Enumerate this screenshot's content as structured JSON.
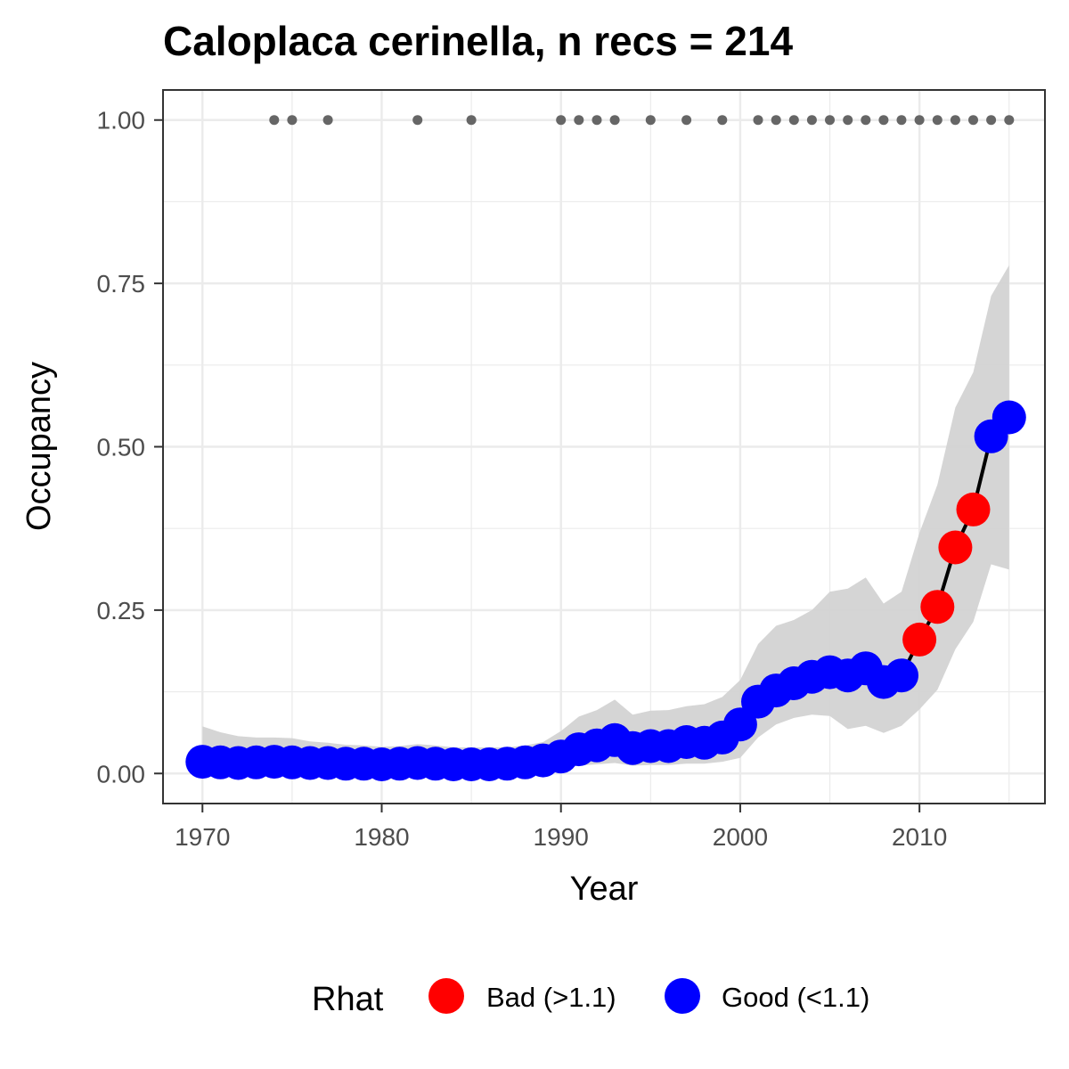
{
  "chart_data": {
    "type": "line",
    "title": "Caloplaca cerinella, n recs = 214",
    "xlabel": "Year",
    "ylabel": "Occupancy",
    "xlim": [
      1967.8,
      1917.0
    ],
    "ylim": [
      -0.046,
      1.046
    ],
    "x_ticks": [
      1970,
      1980,
      1990,
      2000,
      2010
    ],
    "x_tick_labels": [
      "1970",
      "1980",
      "1990",
      "2000",
      "2010"
    ],
    "y_ticks": [
      0,
      0.25,
      0.5,
      0.75,
      1.0
    ],
    "y_tick_labels": [
      "0.00",
      "0.25",
      "0.50",
      "0.75",
      "1.00"
    ],
    "grid": true,
    "legend_position": "bottom",
    "legend": {
      "title": "Rhat",
      "entries": [
        {
          "label": "Bad (>1.1)",
          "color": "#ff0000"
        },
        {
          "label": "Good (<1.1)",
          "color": "#0000ff"
        }
      ]
    },
    "colors": {
      "bad": "#ff0000",
      "good": "#0000ff",
      "ribbon": "#d3d3d3",
      "line": "#000000",
      "record_points": "#666666"
    },
    "series": [
      {
        "x": [
          1970,
          1971,
          1972,
          1973,
          1974,
          1975,
          1976,
          1977,
          1978,
          1979,
          1980,
          1981,
          1982,
          1983,
          1984,
          1985,
          1986,
          1987,
          1988,
          1989,
          1990,
          1991,
          1992,
          1993,
          1994,
          1995,
          1996,
          1997,
          1998,
          1999,
          2000,
          2001,
          2002,
          2003,
          2004,
          2005,
          2006,
          2007,
          2008,
          2009,
          2010,
          2011,
          2012,
          2013,
          2014,
          2015
        ],
        "y": [
          0.018,
          0.017,
          0.016,
          0.017,
          0.018,
          0.017,
          0.016,
          0.016,
          0.015,
          0.015,
          0.014,
          0.015,
          0.016,
          0.015,
          0.014,
          0.014,
          0.014,
          0.015,
          0.017,
          0.02,
          0.026,
          0.037,
          0.043,
          0.051,
          0.039,
          0.042,
          0.042,
          0.048,
          0.047,
          0.055,
          0.075,
          0.11,
          0.127,
          0.138,
          0.148,
          0.155,
          0.15,
          0.161,
          0.14,
          0.15,
          0.205,
          0.255,
          0.346,
          0.404,
          0.516,
          0.545
        ],
        "rhat": [
          "Good",
          "Good",
          "Good",
          "Good",
          "Good",
          "Good",
          "Good",
          "Good",
          "Good",
          "Good",
          "Good",
          "Good",
          "Good",
          "Good",
          "Good",
          "Good",
          "Good",
          "Good",
          "Good",
          "Good",
          "Good",
          "Good",
          "Good",
          "Good",
          "Good",
          "Good",
          "Good",
          "Good",
          "Good",
          "Good",
          "Good",
          "Good",
          "Good",
          "Good",
          "Good",
          "Good",
          "Good",
          "Good",
          "Good",
          "Good",
          "Bad",
          "Bad",
          "Bad",
          "Bad",
          "Good",
          "Good"
        ],
        "lower": [
          0.003,
          0.004,
          0.004,
          0.004,
          0.005,
          0.004,
          0.004,
          0.004,
          0.003,
          0.003,
          0.003,
          0.003,
          0.004,
          0.003,
          0.003,
          0.003,
          0.003,
          0.004,
          0.005,
          0.006,
          0.008,
          0.012,
          0.014,
          0.016,
          0.012,
          0.013,
          0.013,
          0.015,
          0.015,
          0.018,
          0.024,
          0.055,
          0.075,
          0.085,
          0.09,
          0.088,
          0.068,
          0.073,
          0.062,
          0.073,
          0.098,
          0.128,
          0.19,
          0.232,
          0.32,
          0.312
        ],
        "upper": [
          0.072,
          0.063,
          0.057,
          0.055,
          0.055,
          0.054,
          0.049,
          0.047,
          0.044,
          0.043,
          0.041,
          0.042,
          0.045,
          0.043,
          0.04,
          0.04,
          0.04,
          0.04,
          0.043,
          0.048,
          0.065,
          0.087,
          0.097,
          0.113,
          0.09,
          0.096,
          0.097,
          0.103,
          0.106,
          0.117,
          0.143,
          0.198,
          0.226,
          0.235,
          0.25,
          0.278,
          0.283,
          0.3,
          0.26,
          0.278,
          0.368,
          0.442,
          0.56,
          0.614,
          0.731,
          0.778
        ]
      }
    ],
    "record_years": [
      1974,
      1975,
      1977,
      1982,
      1985,
      1990,
      1991,
      1992,
      1993,
      1995,
      1997,
      1999,
      2001,
      2002,
      2003,
      2004,
      2005,
      2006,
      2007,
      2008,
      2009,
      2010,
      2011,
      2012,
      2013,
      2014,
      2015
    ],
    "record_y": 1.0
  }
}
